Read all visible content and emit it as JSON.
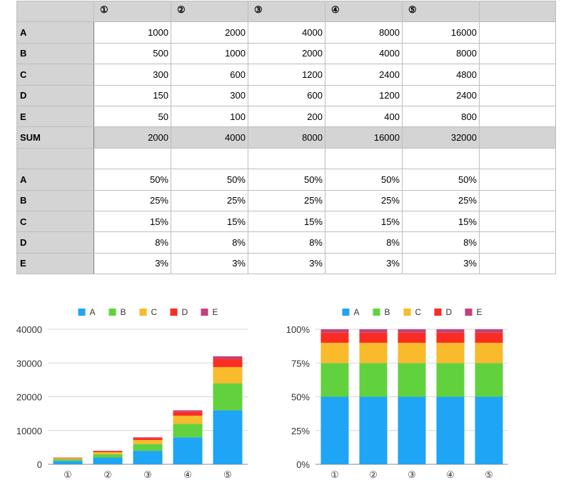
{
  "table": {
    "columns": [
      "①",
      "②",
      "③",
      "④",
      "⑤"
    ],
    "rows": [
      {
        "label": "A",
        "values": [
          "1000",
          "2000",
          "4000",
          "8000",
          "16000"
        ]
      },
      {
        "label": "B",
        "values": [
          "500",
          "1000",
          "2000",
          "4000",
          "8000"
        ]
      },
      {
        "label": "C",
        "values": [
          "300",
          "600",
          "1200",
          "2400",
          "4800"
        ]
      },
      {
        "label": "D",
        "values": [
          "150",
          "300",
          "600",
          "1200",
          "2400"
        ]
      },
      {
        "label": "E",
        "values": [
          "50",
          "100",
          "200",
          "400",
          "800"
        ]
      },
      {
        "label": "SUM",
        "values": [
          "2000",
          "4000",
          "8000",
          "16000",
          "32000"
        ]
      },
      {
        "label": "",
        "values": [
          "",
          "",
          "",
          "",
          ""
        ]
      },
      {
        "label": "A",
        "values": [
          "50%",
          "50%",
          "50%",
          "50%",
          "50%"
        ]
      },
      {
        "label": "B",
        "values": [
          "25%",
          "25%",
          "25%",
          "25%",
          "25%"
        ]
      },
      {
        "label": "C",
        "values": [
          "15%",
          "15%",
          "15%",
          "15%",
          "15%"
        ]
      },
      {
        "label": "D",
        "values": [
          "8%",
          "8%",
          "8%",
          "8%",
          "8%"
        ]
      },
      {
        "label": "E",
        "values": [
          "3%",
          "3%",
          "3%",
          "3%",
          "3%"
        ]
      }
    ]
  },
  "chart_data": [
    {
      "type": "bar",
      "stacked": true,
      "categories": [
        "①",
        "②",
        "③",
        "④",
        "⑤"
      ],
      "series": [
        {
          "name": "A",
          "color": "#1ea5f5",
          "values": [
            1000,
            2000,
            4000,
            8000,
            16000
          ]
        },
        {
          "name": "B",
          "color": "#62d13e",
          "values": [
            500,
            1000,
            2000,
            4000,
            8000
          ]
        },
        {
          "name": "C",
          "color": "#f9ba2b",
          "values": [
            300,
            600,
            1200,
            2400,
            4800
          ]
        },
        {
          "name": "D",
          "color": "#fb2d23",
          "values": [
            150,
            300,
            600,
            1200,
            2400
          ]
        },
        {
          "name": "E",
          "color": "#c2417a",
          "values": [
            50,
            100,
            200,
            400,
            800
          ]
        }
      ],
      "ylim": [
        0,
        40000
      ],
      "yticks": [
        0,
        10000,
        20000,
        30000,
        40000
      ],
      "ytick_labels": [
        "0",
        "10000",
        "20000",
        "30000",
        "40000"
      ],
      "legend": "top-center",
      "grid": true
    },
    {
      "type": "bar",
      "stacked": true,
      "percent": true,
      "categories": [
        "①",
        "②",
        "③",
        "④",
        "⑤"
      ],
      "series": [
        {
          "name": "A",
          "color": "#1ea5f5",
          "values": [
            50,
            50,
            50,
            50,
            50
          ]
        },
        {
          "name": "B",
          "color": "#62d13e",
          "values": [
            25,
            25,
            25,
            25,
            25
          ]
        },
        {
          "name": "C",
          "color": "#f9ba2b",
          "values": [
            15,
            15,
            15,
            15,
            15
          ]
        },
        {
          "name": "D",
          "color": "#fb2d23",
          "values": [
            7.5,
            7.5,
            7.5,
            7.5,
            7.5
          ]
        },
        {
          "name": "E",
          "color": "#c2417a",
          "values": [
            2.5,
            2.5,
            2.5,
            2.5,
            2.5
          ]
        }
      ],
      "ylim": [
        0,
        100
      ],
      "yticks": [
        0,
        25,
        50,
        75,
        100
      ],
      "ytick_labels": [
        "0%",
        "25%",
        "50%",
        "75%",
        "100%"
      ],
      "legend": "top-center",
      "grid": true
    }
  ]
}
